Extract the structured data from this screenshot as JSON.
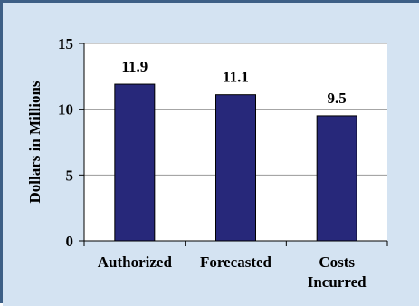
{
  "chart_data": {
    "type": "bar",
    "categories": [
      "Authorized",
      "Forecasted",
      "Costs\nIncurred"
    ],
    "values": [
      11.9,
      11.1,
      9.5
    ],
    "data_labels": [
      "11.9",
      "11.1",
      "9.5"
    ],
    "title": "",
    "xlabel": "",
    "ylabel": "Dollars in Millions",
    "ylim": [
      0,
      15
    ],
    "yticks": [
      0,
      5,
      10,
      15
    ],
    "grid": true,
    "legend": "none"
  },
  "colors": {
    "outer_background": "#d4e3f2",
    "plot_background": "#ffffff",
    "bar": "#27287a",
    "frame_border": "#3d5f86",
    "gridline": "#9a9a9a"
  }
}
